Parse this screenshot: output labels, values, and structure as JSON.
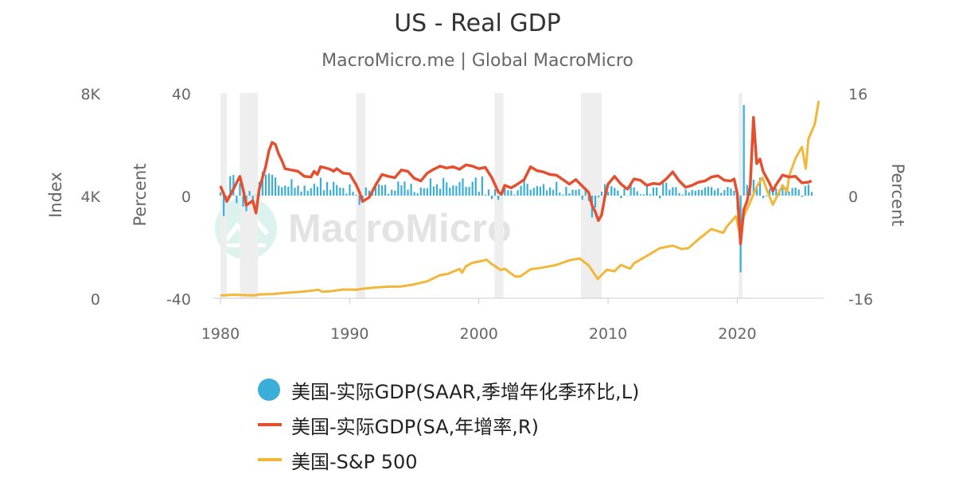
{
  "header": {
    "title": "US - Real GDP",
    "subtitle": "MacroMicro.me | Global MacroMicro"
  },
  "watermark": {
    "text": "MacroMicro"
  },
  "axes": {
    "left_outer_title": "Index",
    "left_inner_title": "Percent",
    "right_title": "Percent"
  },
  "colors": {
    "gdp_qoq": "#3aaed8",
    "gdp_yoy": "#e4502f",
    "sp500": "#f2b739",
    "recession": "#eeeeee",
    "axis": "#cccccc"
  },
  "chart_data": {
    "type": "bar+line",
    "title": "US - Real GDP",
    "subtitle": "MacroMicro.me | Global MacroMicro",
    "x_range": [
      1980,
      2026.5
    ],
    "x_ticks": [
      "1980",
      "1990",
      "2000",
      "2010",
      "2020"
    ],
    "axes": {
      "index": {
        "label": "Index",
        "range": [
          0,
          8000
        ],
        "ticks": [
          "0",
          "4K",
          "8K"
        ]
      },
      "percent_left": {
        "label": "Percent",
        "range": [
          -40,
          40
        ],
        "ticks": [
          "-40",
          "0",
          "40"
        ]
      },
      "percent_right": {
        "label": "Percent",
        "range": [
          -16,
          16
        ],
        "ticks": [
          "-16",
          "0",
          "16"
        ]
      }
    },
    "recessions": [
      [
        1980.0,
        1980.5
      ],
      [
        1981.5,
        1982.9
      ],
      [
        1990.5,
        1991.2
      ],
      [
        2001.2,
        2001.9
      ],
      [
        2007.9,
        2009.5
      ],
      [
        2020.1,
        2020.4
      ]
    ],
    "series": [
      {
        "name": "美国-实际GDP(SAAR,季增年化季环比,L)",
        "type": "bar",
        "axis": "percent_left",
        "x": [
          1980.0,
          1980.25,
          1980.5,
          1980.75,
          1981.0,
          1981.25,
          1981.5,
          1981.75,
          1982.0,
          1982.25,
          1982.5,
          1982.75,
          1983.0,
          1983.25,
          1983.5,
          1983.75,
          1984.0,
          1984.25,
          1984.5,
          1984.75,
          1985.0,
          1985.25,
          1985.5,
          1985.75,
          1986.0,
          1986.25,
          1986.5,
          1986.75,
          1987.0,
          1987.25,
          1987.5,
          1987.75,
          1988.0,
          1988.25,
          1988.5,
          1988.75,
          1989.0,
          1989.25,
          1989.5,
          1989.75,
          1990.0,
          1990.25,
          1990.5,
          1990.75,
          1991.0,
          1991.25,
          1991.5,
          1991.75,
          1992.0,
          1992.25,
          1992.5,
          1992.75,
          1993.0,
          1993.25,
          1993.5,
          1993.75,
          1994.0,
          1994.25,
          1994.5,
          1994.75,
          1995.0,
          1995.25,
          1995.5,
          1995.75,
          1996.0,
          1996.25,
          1996.5,
          1996.75,
          1997.0,
          1997.25,
          1997.5,
          1997.75,
          1998.0,
          1998.25,
          1998.5,
          1998.75,
          1999.0,
          1999.25,
          1999.5,
          1999.75,
          2000.0,
          2000.25,
          2000.5,
          2000.75,
          2001.0,
          2001.25,
          2001.5,
          2001.75,
          2002.0,
          2002.25,
          2002.5,
          2002.75,
          2003.0,
          2003.25,
          2003.5,
          2003.75,
          2004.0,
          2004.25,
          2004.5,
          2004.75,
          2005.0,
          2005.25,
          2005.5,
          2005.75,
          2006.0,
          2006.25,
          2006.5,
          2006.75,
          2007.0,
          2007.25,
          2007.5,
          2007.75,
          2008.0,
          2008.25,
          2008.5,
          2008.75,
          2009.0,
          2009.25,
          2009.5,
          2009.75,
          2010.0,
          2010.25,
          2010.5,
          2010.75,
          2011.0,
          2011.25,
          2011.5,
          2011.75,
          2012.0,
          2012.25,
          2012.5,
          2012.75,
          2013.0,
          2013.25,
          2013.5,
          2013.75,
          2014.0,
          2014.25,
          2014.5,
          2014.75,
          2015.0,
          2015.25,
          2015.5,
          2015.75,
          2016.0,
          2016.25,
          2016.5,
          2016.75,
          2017.0,
          2017.25,
          2017.5,
          2017.75,
          2018.0,
          2018.25,
          2018.5,
          2018.75,
          2019.0,
          2019.25,
          2019.5,
          2019.75,
          2020.0,
          2020.25,
          2020.5,
          2020.75,
          2021.0,
          2021.25,
          2021.5,
          2021.75,
          2022.0,
          2022.25,
          2022.5,
          2022.75,
          2023.0,
          2023.25,
          2023.5,
          2023.75,
          2024.0,
          2024.25,
          2024.5,
          2024.75,
          2025.0,
          2025.25,
          2025.5,
          2025.75
        ],
        "values": [
          1.3,
          -8.0,
          -0.5,
          7.6,
          8.1,
          -2.9,
          4.9,
          -4.3,
          -6.1,
          1.8,
          -1.5,
          0.2,
          5.4,
          9.4,
          8.2,
          8.6,
          8.1,
          7.1,
          3.9,
          3.3,
          3.9,
          3.5,
          6.4,
          3.1,
          3.9,
          1.6,
          3.9,
          1.9,
          2.9,
          4.6,
          3.5,
          7.0,
          2.1,
          5.3,
          2.2,
          5.4,
          4.1,
          3.1,
          3.0,
          0.8,
          4.4,
          1.5,
          0.3,
          -3.6,
          -1.9,
          3.2,
          2.0,
          1.9,
          4.9,
          4.4,
          4.0,
          4.2,
          0.7,
          2.3,
          1.9,
          5.5,
          4.0,
          5.5,
          2.3,
          4.6,
          1.4,
          0.9,
          3.2,
          2.9,
          2.9,
          6.7,
          3.6,
          4.4,
          2.7,
          6.9,
          5.2,
          3.1,
          4.0,
          3.8,
          5.3,
          6.7,
          3.4,
          3.4,
          5.4,
          7.0,
          1.5,
          7.5,
          0.4,
          2.4,
          -1.3,
          2.5,
          -1.6,
          1.1,
          3.4,
          2.1,
          2.0,
          0.3,
          2.1,
          3.8,
          6.8,
          4.6,
          2.3,
          3.0,
          3.7,
          3.5,
          4.5,
          2.0,
          3.2,
          2.3,
          5.4,
          1.2,
          0.4,
          3.4,
          0.9,
          2.3,
          2.2,
          2.5,
          -1.6,
          2.3,
          -2.1,
          -8.5,
          -4.6,
          -0.7,
          1.5,
          4.5,
          1.5,
          3.7,
          3.0,
          2.0,
          -1.0,
          2.9,
          -0.1,
          4.7,
          3.2,
          1.7,
          0.5,
          0.5,
          3.6,
          0.5,
          3.2,
          3.2,
          -1.1,
          5.5,
          5.0,
          2.3,
          3.3,
          3.3,
          1.0,
          0.4,
          2.4,
          1.3,
          2.2,
          1.9,
          2.3,
          2.2,
          3.2,
          3.5,
          3.3,
          2.1,
          2.9,
          1.1,
          2.2,
          3.4,
          2.8,
          1.9,
          -5.5,
          -29.9,
          35.3,
          4.2,
          5.2,
          6.2,
          3.3,
          7.0,
          -1.0,
          -0.3,
          2.7,
          3.4,
          2.8,
          2.4,
          4.4,
          3.2,
          1.6,
          3.0,
          3.1,
          2.4,
          -0.5,
          3.8,
          4.4,
          1.4
        ]
      },
      {
        "name": "美国-实际GDP(SA,年增率,R)",
        "type": "line",
        "axis": "percent_right",
        "x": [
          1980.0,
          1980.5,
          1981.0,
          1981.5,
          1981.75,
          1982.0,
          1982.5,
          1982.75,
          1983.0,
          1983.5,
          1983.75,
          1984.0,
          1984.25,
          1984.5,
          1984.75,
          1985.0,
          1985.5,
          1986.0,
          1986.5,
          1987.0,
          1987.25,
          1987.5,
          1987.75,
          1988.0,
          1988.5,
          1988.75,
          1989.0,
          1989.5,
          1990.0,
          1990.5,
          1990.75,
          1991.0,
          1991.5,
          1992.0,
          1992.5,
          1993.0,
          1993.5,
          1994.0,
          1994.5,
          1995.0,
          1995.5,
          1996.0,
          1996.5,
          1997.0,
          1997.5,
          1998.0,
          1998.5,
          1999.0,
          1999.5,
          2000.0,
          2000.5,
          2001.0,
          2001.5,
          2001.75,
          2002.0,
          2002.5,
          2003.0,
          2003.5,
          2004.0,
          2004.5,
          2005.0,
          2005.5,
          2006.0,
          2006.5,
          2007.0,
          2007.5,
          2008.0,
          2008.5,
          2008.75,
          2009.0,
          2009.25,
          2009.5,
          2009.75,
          2010.0,
          2010.5,
          2011.0,
          2011.5,
          2012.0,
          2012.5,
          2013.0,
          2013.5,
          2014.0,
          2014.5,
          2015.0,
          2015.5,
          2016.0,
          2016.5,
          2017.0,
          2017.5,
          2018.0,
          2018.5,
          2019.0,
          2019.5,
          2019.75,
          2020.0,
          2020.25,
          2020.5,
          2020.75,
          2021.0,
          2021.25,
          2021.5,
          2021.75,
          2022.0,
          2022.5,
          2022.75,
          2023.0,
          2023.5,
          2024.0,
          2024.5,
          2025.0,
          2025.5,
          2025.75
        ],
        "values": [
          1.5,
          -0.9,
          1.0,
          3.0,
          1.0,
          -1.5,
          -0.8,
          -2.7,
          1.0,
          4.5,
          7.0,
          8.3,
          8.0,
          6.5,
          5.5,
          4.2,
          4.0,
          3.8,
          3.0,
          2.9,
          3.8,
          3.3,
          4.5,
          4.4,
          4.1,
          3.8,
          4.2,
          3.5,
          3.4,
          1.7,
          0.6,
          -0.9,
          -0.3,
          1.6,
          3.3,
          3.0,
          2.8,
          4.0,
          3.8,
          2.7,
          2.3,
          3.5,
          4.1,
          4.6,
          4.3,
          4.5,
          4.1,
          4.8,
          4.6,
          4.2,
          4.4,
          2.8,
          0.6,
          0.2,
          1.6,
          1.2,
          1.8,
          2.5,
          4.5,
          3.9,
          3.7,
          3.3,
          3.2,
          2.5,
          1.8,
          2.5,
          1.5,
          0.5,
          -1.5,
          -2.5,
          -3.9,
          -3.0,
          -0.2,
          1.8,
          3.0,
          1.8,
          1.0,
          2.6,
          2.4,
          1.6,
          1.9,
          1.8,
          2.6,
          3.7,
          2.3,
          1.3,
          1.6,
          2.1,
          2.3,
          2.9,
          3.1,
          2.4,
          2.3,
          2.6,
          0.3,
          -7.5,
          -2.2,
          -0.9,
          1.5,
          12.2,
          5.0,
          5.7,
          3.8,
          1.9,
          0.7,
          1.7,
          3.2,
          2.9,
          3.0,
          2.0,
          2.1,
          2.3
        ]
      },
      {
        "name": "美国-S&P 500",
        "type": "line",
        "axis": "index",
        "x": [
          1980.0,
          1981.0,
          1982.0,
          1982.6,
          1983.0,
          1984.0,
          1985.0,
          1986.0,
          1987.0,
          1987.6,
          1987.9,
          1988.5,
          1989.5,
          1990.5,
          1991.0,
          1992.0,
          1993.0,
          1994.0,
          1995.0,
          1996.0,
          1997.0,
          1997.6,
          1998.5,
          1998.7,
          1999.0,
          1999.5,
          2000.0,
          2000.6,
          2001.0,
          2001.7,
          2002.0,
          2002.8,
          2003.2,
          2004.0,
          2005.0,
          2006.0,
          2007.0,
          2007.8,
          2008.5,
          2009.2,
          2009.9,
          2010.5,
          2011.0,
          2011.7,
          2012.0,
          2013.0,
          2014.0,
          2015.0,
          2015.7,
          2016.2,
          2017.0,
          2018.0,
          2018.9,
          2019.2,
          2019.9,
          2020.2,
          2020.5,
          2021.0,
          2021.5,
          2021.95,
          2022.3,
          2022.75,
          2023.0,
          2023.5,
          2023.85,
          2024.0,
          2024.5,
          2025.0,
          2025.3,
          2025.5,
          2026.0,
          2026.3
        ],
        "values": [
          108,
          135,
          120,
          110,
          145,
          165,
          210,
          240,
          290,
          330,
          250,
          270,
          340,
          330,
          370,
          420,
          450,
          460,
          540,
          660,
          900,
          950,
          1140,
          1000,
          1250,
          1380,
          1430,
          1500,
          1330,
          1100,
          1150,
          850,
          850,
          1130,
          1200,
          1300,
          1480,
          1550,
          1280,
          750,
          1110,
          1050,
          1300,
          1150,
          1360,
          1650,
          1950,
          2050,
          1920,
          1950,
          2300,
          2700,
          2550,
          2800,
          3200,
          2500,
          3200,
          3750,
          4350,
          4700,
          4200,
          3650,
          3900,
          4400,
          4150,
          4750,
          5450,
          5900,
          5050,
          6200,
          6800,
          7700
        ]
      }
    ],
    "legend": "bottom-center"
  }
}
